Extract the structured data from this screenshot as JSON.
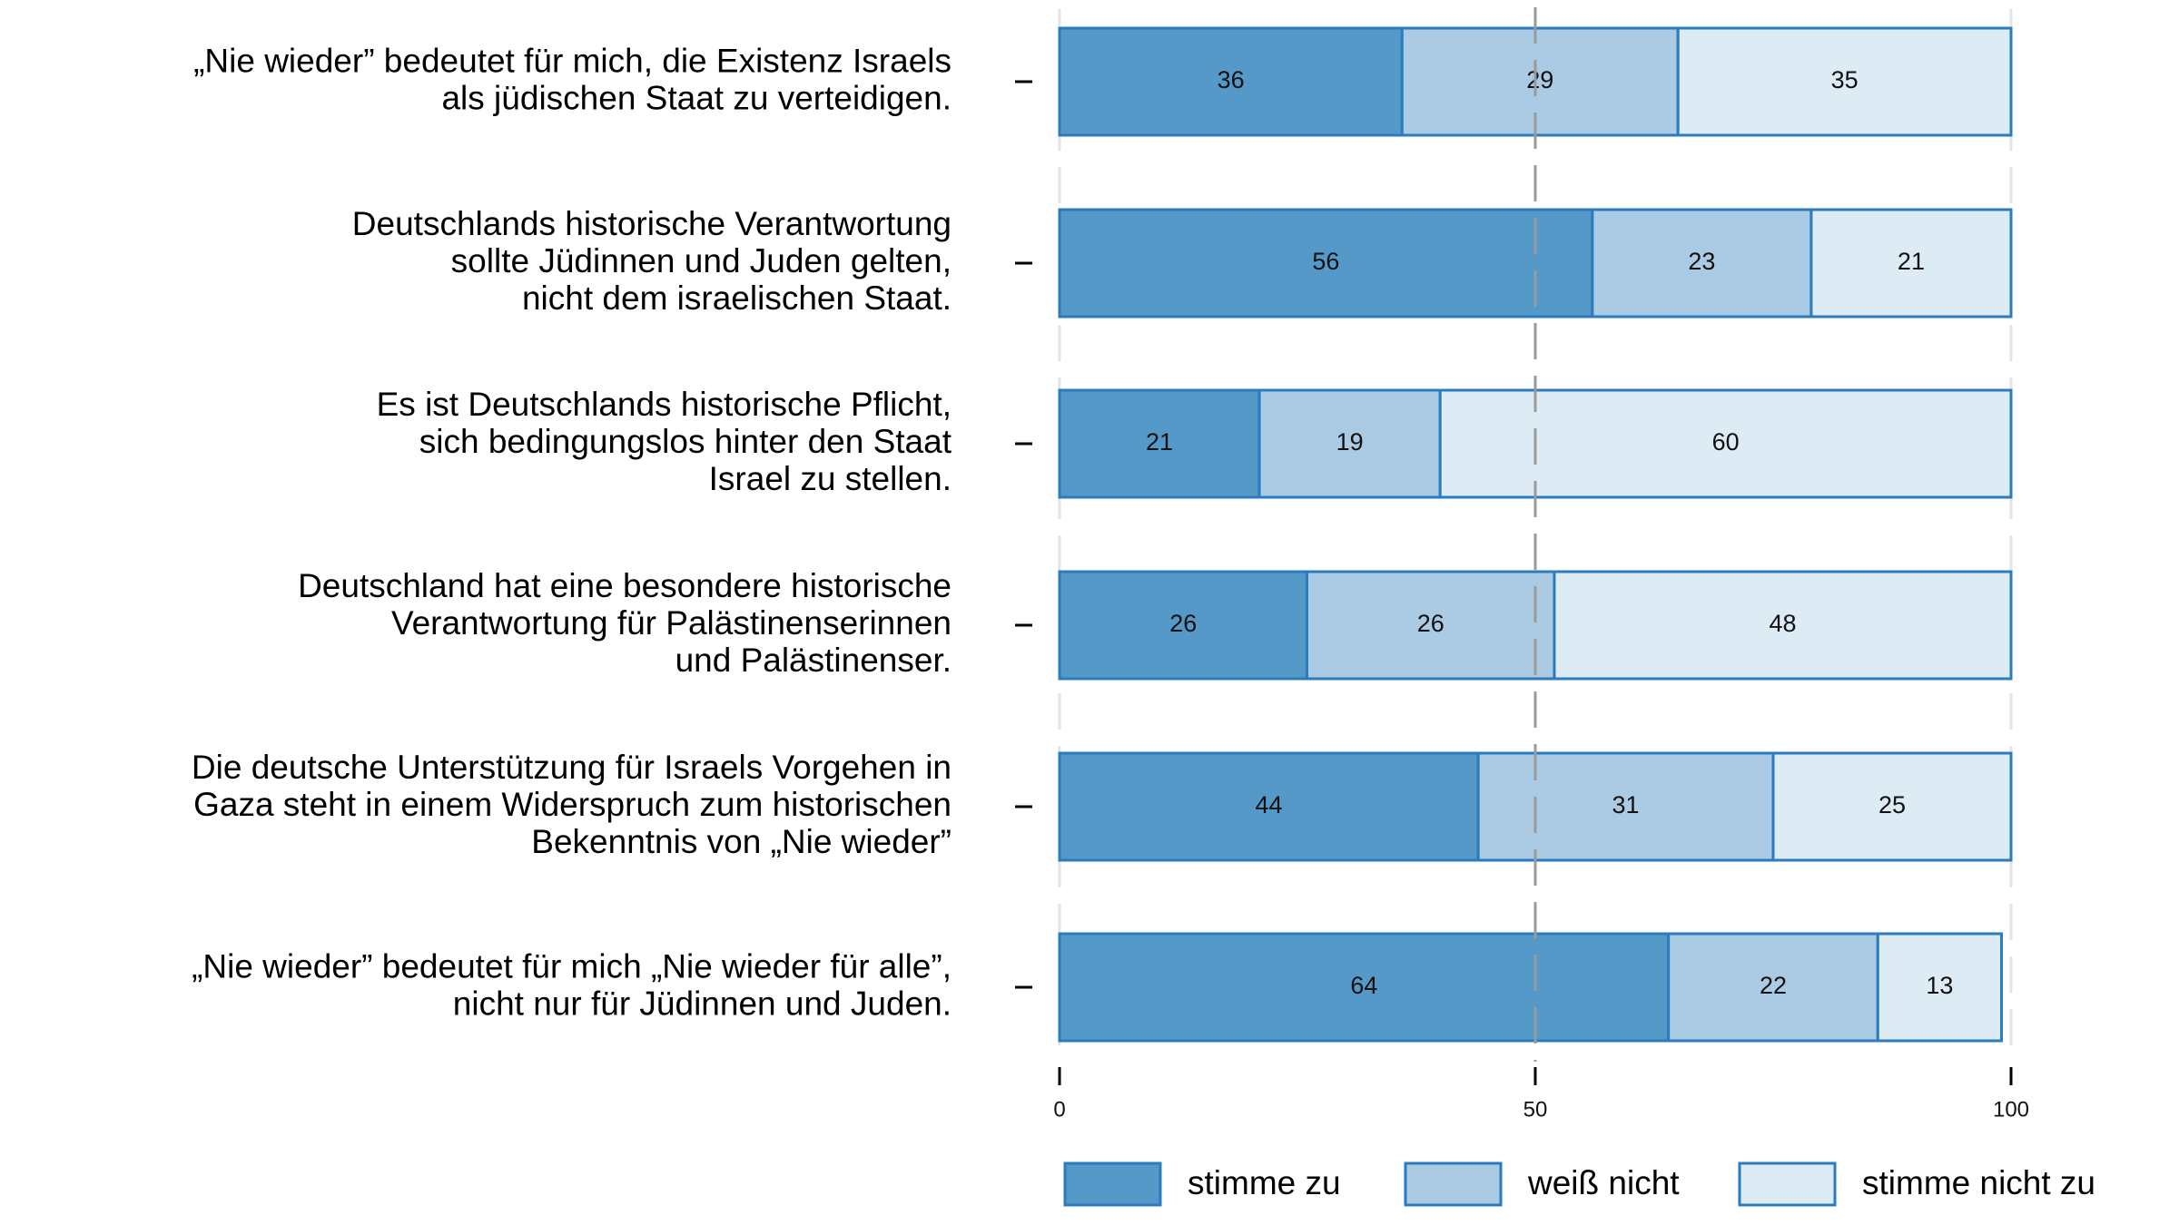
{
  "chart_data": {
    "type": "bar",
    "orientation": "horizontal",
    "stacked": true,
    "categories": [
      [
        "„Nie wieder” bedeutet für mich, die Existenz Israels",
        "als jüdischen Staat zu verteidigen."
      ],
      [
        "Deutschlands historische Verantwortung",
        "sollte Jüdinnen und Juden gelten,",
        "nicht dem israelischen Staat."
      ],
      [
        "Es ist Deutschlands historische Pflicht,",
        "sich bedingungslos hinter den Staat",
        "Israel zu stellen."
      ],
      [
        "Deutschland hat eine besondere historische",
        "Verantwortung für Palästinenserinnen",
        "und Palästinenser."
      ],
      [
        "Die deutsche Unterstützung für Israels Vorgehen in",
        "Gaza steht in einem Widerspruch zum historischen",
        "Bekenntnis von „Nie wieder”"
      ],
      [
        "„Nie wieder” bedeutet für mich „Nie wieder für alle”,",
        "nicht nur für Jüdinnen und Juden."
      ]
    ],
    "series": [
      {
        "name": "stimme zu",
        "values": [
          36,
          56,
          21,
          26,
          44,
          64
        ],
        "color": "#5599c8"
      },
      {
        "name": "weiß nicht",
        "values": [
          29,
          23,
          19,
          26,
          31,
          22
        ],
        "color": "#aacbe3"
      },
      {
        "name": "stimme nicht zu",
        "values": [
          35,
          21,
          60,
          48,
          25,
          13
        ],
        "color": "#ddebf5"
      }
    ],
    "xlim": [
      0,
      100
    ],
    "xticks": [
      "0",
      "50",
      "100"
    ],
    "reference_line": 50,
    "border_color": "#2b7bbf",
    "grid": true,
    "legend_placement": "bottom"
  }
}
